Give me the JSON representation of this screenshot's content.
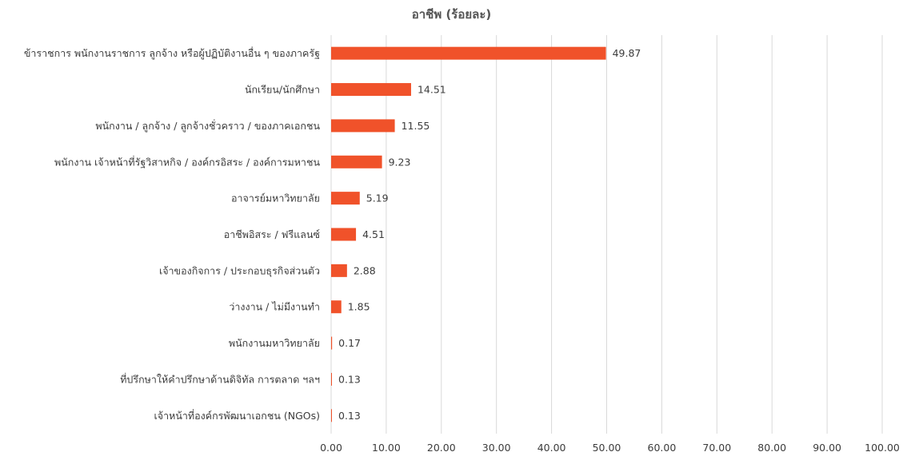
{
  "chart_data": {
    "type": "bar",
    "orientation": "horizontal",
    "title": "อาชีพ (ร้อยละ)",
    "bar_color": "#f0522a",
    "grid": true,
    "xlim": [
      0,
      100
    ],
    "x_ticks": [
      "0.00",
      "10.00",
      "20.00",
      "30.00",
      "40.00",
      "50.00",
      "60.00",
      "70.00",
      "80.00",
      "90.00",
      "100.00"
    ],
    "categories": [
      "ข้าราชการ พนักงานราชการ ลูกจ้าง หรือผู้ปฏิบัติงานอื่น ๆ ของภาครัฐ",
      "นักเรียน/นักศึกษา",
      "พนักงาน / ลูกจ้าง / ลูกจ้างชั่วคราว / ของภาคเอกชน",
      "พนักงาน เจ้าหน้าที่รัฐวิสาหกิจ / องค์กรอิสระ / องค์การมหาชน",
      "อาจารย์มหาวิทยาลัย",
      "อาชีพอิสระ / ฟรีแลนซ์",
      "เจ้าของกิจการ / ประกอบธุรกิจส่วนตัว",
      "ว่างงาน / ไม่มีงานทำ",
      "พนักงานมหาวิทยาลัย",
      "ที่ปรึกษาให้คำปรึกษาด้านดิจิทัล การตลาด ฯลฯ",
      "เจ้าหน้าที่องค์กรพัฒนาเอกชน (NGOs)"
    ],
    "values": [
      49.87,
      14.51,
      11.55,
      9.23,
      5.19,
      4.51,
      2.88,
      1.85,
      0.17,
      0.13,
      0.13
    ],
    "value_labels": [
      "49.87",
      "14.51",
      "11.55",
      "9.23",
      "5.19",
      "4.51",
      "2.88",
      "1.85",
      "0.17",
      "0.13",
      "0.13"
    ]
  }
}
